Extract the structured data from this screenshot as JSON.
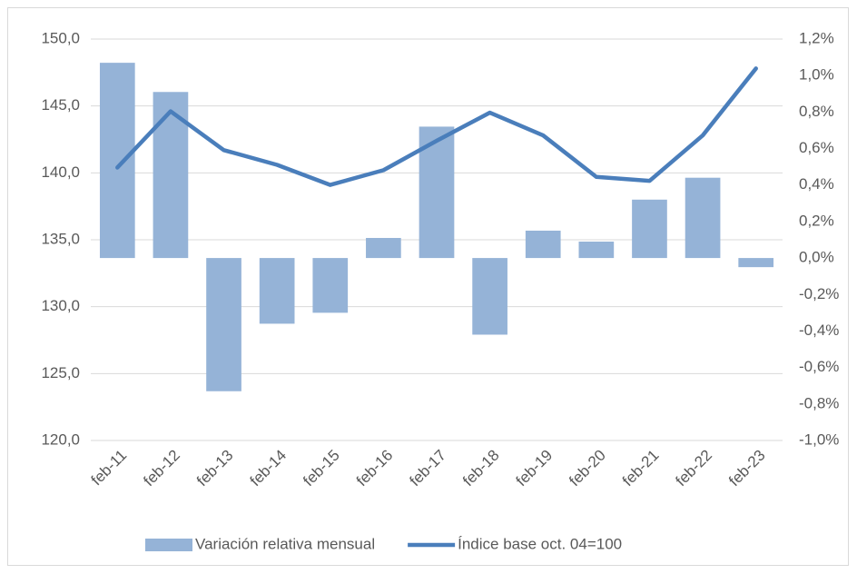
{
  "chart_data": {
    "type": "combo",
    "categories": [
      "feb-11",
      "feb-12",
      "feb-13",
      "feb-14",
      "feb-15",
      "feb-16",
      "feb-17",
      "feb-18",
      "feb-19",
      "feb-20",
      "feb-21",
      "feb-22",
      "feb-23"
    ],
    "series": [
      {
        "name": "Variación relativa mensual",
        "type": "bar",
        "axis": "y2",
        "color": "#95b3d7",
        "values": [
          1.07,
          0.91,
          -0.73,
          -0.36,
          -0.3,
          0.11,
          0.72,
          -0.42,
          0.15,
          0.09,
          0.32,
          0.44,
          -0.05
        ]
      },
      {
        "name": "Índice base oct. 04=100",
        "type": "line",
        "axis": "y",
        "color": "#4a7ebb",
        "values": [
          140.4,
          144.6,
          141.7,
          140.6,
          139.1,
          140.2,
          142.4,
          144.5,
          142.8,
          139.7,
          139.4,
          142.8,
          147.8
        ]
      }
    ],
    "ylim": [
      120,
      150
    ],
    "yticks": [
      {
        "value": 120,
        "label": "120,0"
      },
      {
        "value": 125,
        "label": "125,0"
      },
      {
        "value": 130,
        "label": "130,0"
      },
      {
        "value": 135,
        "label": "135,0"
      },
      {
        "value": 140,
        "label": "140,0"
      },
      {
        "value": 145,
        "label": "145,0"
      },
      {
        "value": 150,
        "label": "150,0"
      }
    ],
    "y2lim": [
      -1.0,
      1.2
    ],
    "y2ticks": [
      {
        "value": -1.0,
        "label": "-1,0%"
      },
      {
        "value": -0.8,
        "label": "-0,8%"
      },
      {
        "value": -0.6,
        "label": "-0,6%"
      },
      {
        "value": -0.4,
        "label": "-0,4%"
      },
      {
        "value": -0.2,
        "label": "-0,2%"
      },
      {
        "value": 0,
        "label": "0,0%"
      },
      {
        "value": 0.2,
        "label": "0,2%"
      },
      {
        "value": 0.4,
        "label": "0,4%"
      },
      {
        "value": 0.6,
        "label": "0,6%"
      },
      {
        "value": 0.8,
        "label": "0,8%"
      },
      {
        "value": 1.0,
        "label": "1,0%"
      },
      {
        "value": 1.2,
        "label": "1,2%"
      }
    ],
    "grid": true,
    "legend": "bottom"
  }
}
